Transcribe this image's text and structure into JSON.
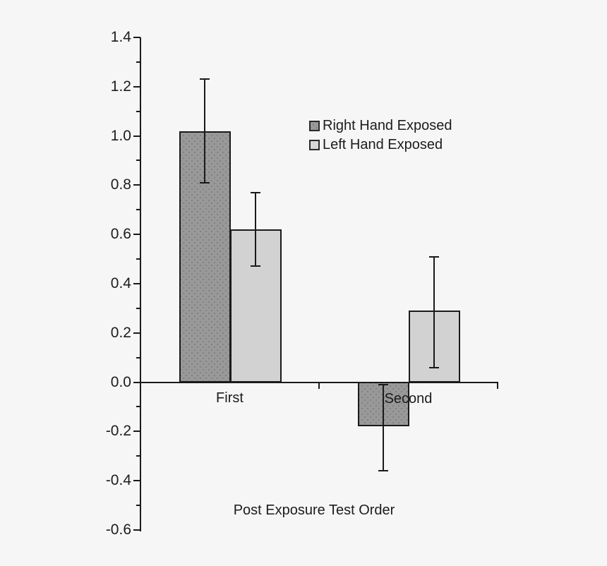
{
  "figure": {
    "background_color": "#f6f6f6",
    "axis_color": "#1a1a1a",
    "text_color": "#1c1c1c"
  },
  "chart_data": {
    "type": "bar",
    "title": "",
    "xlabel": "Post Exposure Test Order",
    "ylabel": "",
    "categories": [
      "First",
      "Second"
    ],
    "series": [
      {
        "name": "Right Hand Exposed",
        "values": [
          1.02,
          -0.18
        ],
        "error_low": [
          0.81,
          -0.36
        ],
        "error_high": [
          1.23,
          -0.01
        ],
        "color": "#999999",
        "pattern": "dots",
        "border_color": "#1b1b1b"
      },
      {
        "name": "Left Hand Exposed",
        "values": [
          0.62,
          0.29
        ],
        "error_low": [
          0.47,
          0.06
        ],
        "error_high": [
          0.77,
          0.51
        ],
        "color": "#d2d2d2",
        "pattern": "none",
        "border_color": "#1b1b1b"
      }
    ],
    "ylim": [
      -0.6,
      1.4
    ],
    "y_major_tick_step": 0.2,
    "y_minor_tick_step": 0.1,
    "y_tick_labels": [
      "1.4",
      "1.2",
      "1.0",
      "0.8",
      "0.6",
      "0.4",
      "0.2",
      "0.0",
      "-0.2",
      "-0.4",
      "-0.6"
    ],
    "grid": false,
    "error_bars": true,
    "legend_position": "inside-upper-right"
  }
}
